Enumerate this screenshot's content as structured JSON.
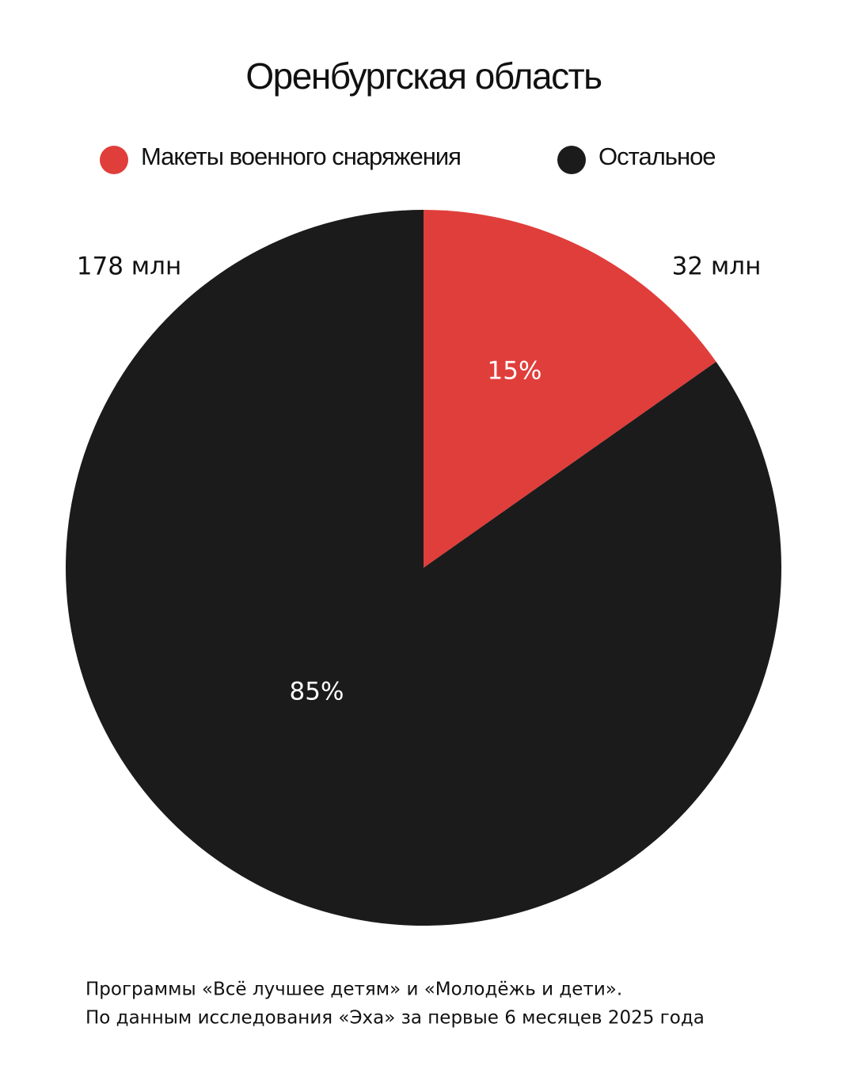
{
  "chart_data": {
    "type": "pie",
    "title": "Оренбургская область",
    "categories": [
      "Макеты военного снаряжения",
      "Остальное"
    ],
    "colors": [
      "#e03e3b",
      "#1b1b1b"
    ],
    "values": [
      32,
      178
    ],
    "value_labels": [
      "32 млн",
      "178 млн"
    ],
    "shares": [
      {
        "value": 15,
        "label": "15%"
      },
      {
        "value": 85,
        "label": "85%"
      }
    ],
    "notes": [
      "Программы «Всё лучшее детям» и «Молодёжь и дети».",
      "По данным исследования «Эха» за первые 6 месяцев 2025 года"
    ]
  }
}
